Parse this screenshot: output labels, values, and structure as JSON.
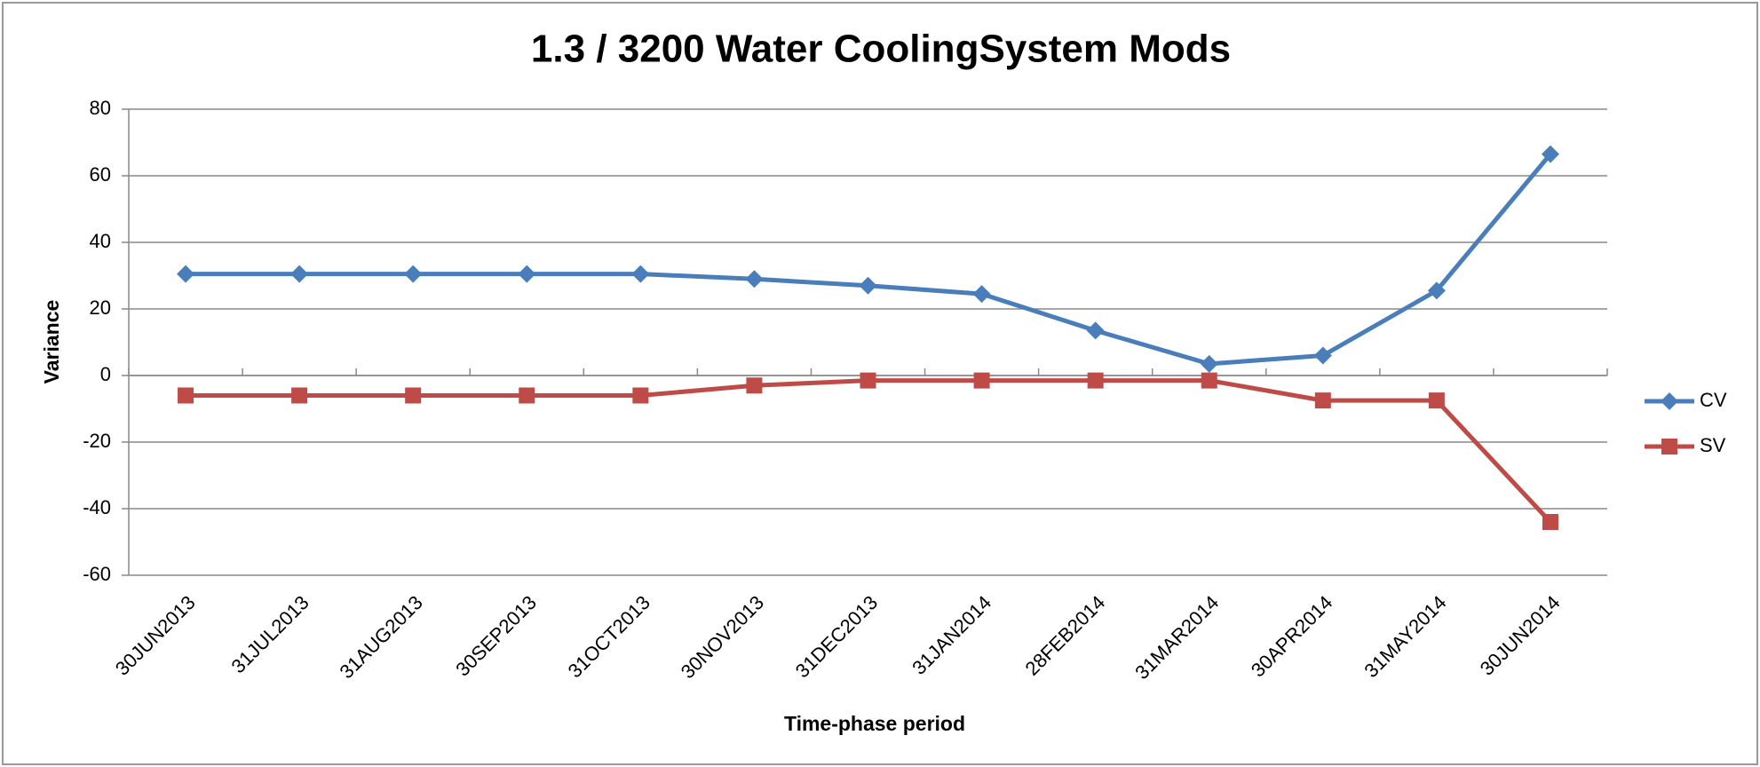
{
  "chart_data": {
    "type": "line",
    "title": "1.3 / 3200 Water CoolingSystem Mods",
    "xlabel": "Time-phase period",
    "ylabel": "Variance",
    "categories": [
      "30JUN2013",
      "31JUL2013",
      "31AUG2013",
      "30SEP2013",
      "31OCT2013",
      "30NOV2013",
      "31DEC2013",
      "31JAN2014",
      "28FEB2014",
      "31MAR2014",
      "30APR2014",
      "31MAY2014",
      "30JUN2014"
    ],
    "series": [
      {
        "name": "CV",
        "color": "#4a7ebb",
        "marker": "diamond",
        "values": [
          30.5,
          30.5,
          30.5,
          30.5,
          30.5,
          29,
          27,
          24.5,
          13.5,
          3.5,
          6,
          25.5,
          66.5
        ]
      },
      {
        "name": "SV",
        "color": "#be4b48",
        "marker": "square",
        "values": [
          -6,
          -6,
          -6,
          -6,
          -6,
          -3,
          -1.5,
          -1.5,
          -1.5,
          -1.5,
          -7.5,
          -7.5,
          -44
        ]
      }
    ],
    "ylim": [
      -60,
      80
    ],
    "yticks": [
      -60,
      -40,
      -20,
      0,
      20,
      40,
      60,
      80
    ],
    "grid": true,
    "legend": "right"
  }
}
